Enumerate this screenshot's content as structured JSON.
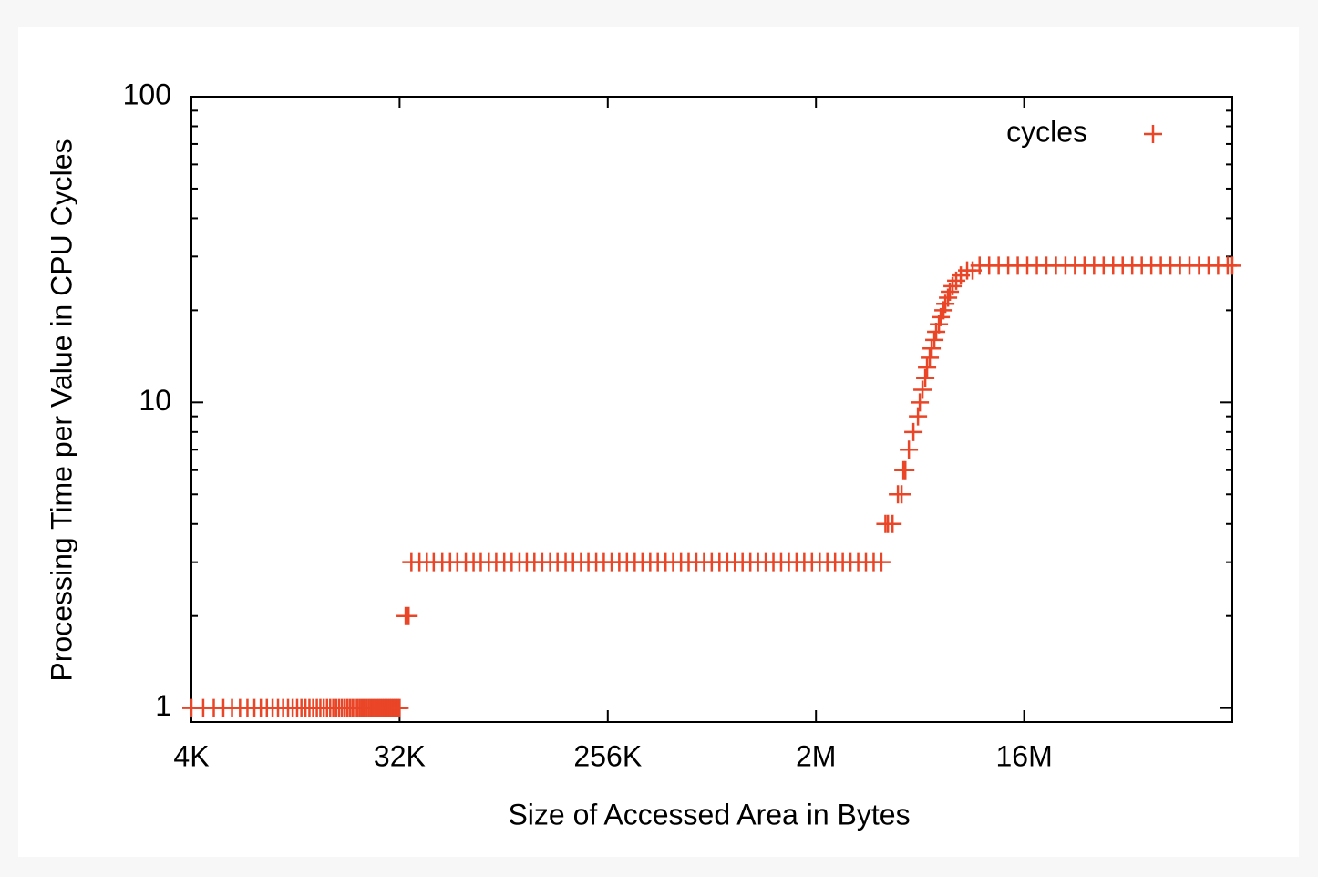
{
  "chart_data": {
    "type": "scatter",
    "xlabel": "Size of Accessed Area in Bytes",
    "ylabel": "Processing Time per Value in CPU Cycles",
    "xscale": "log",
    "yscale": "log",
    "xlim": [
      4,
      131072
    ],
    "ylim": [
      0.9,
      100
    ],
    "xticks": [
      {
        "value": 4,
        "label": "4K"
      },
      {
        "value": 32,
        "label": "32K"
      },
      {
        "value": 256,
        "label": "256K"
      },
      {
        "value": 2048,
        "label": "2M"
      },
      {
        "value": 16384,
        "label": "16M"
      }
    ],
    "yticks": [
      1,
      10,
      100
    ],
    "yminorticks": [
      2,
      3,
      4,
      5,
      6,
      7,
      8,
      9,
      20,
      30,
      40,
      50,
      60,
      70,
      80,
      90
    ],
    "legend": "upper right",
    "x": [
      4,
      4.5,
      5,
      5.5,
      6,
      6.5,
      7,
      7.5,
      8,
      8.5,
      9,
      9.5,
      10,
      10.5,
      11,
      11.5,
      12,
      12.5,
      13,
      13.5,
      14,
      14.5,
      15,
      15.5,
      16,
      16.5,
      17,
      17.5,
      18,
      18.5,
      19,
      19.5,
      20,
      20.5,
      21,
      21.5,
      22,
      22.5,
      23,
      23.5,
      24,
      24.5,
      25,
      25.5,
      26,
      26.5,
      27,
      27.5,
      28,
      28.5,
      29,
      29.5,
      30,
      30.5,
      31,
      31.5,
      32,
      34,
      35,
      36,
      39,
      42,
      45,
      49,
      53,
      57,
      62,
      67,
      72,
      78,
      84,
      91,
      98,
      106,
      114,
      123,
      133,
      144,
      155,
      168,
      181,
      196,
      211,
      228,
      246,
      266,
      287,
      310,
      335,
      362,
      391,
      422,
      456,
      492,
      532,
      574,
      620,
      670,
      723,
      781,
      844,
      911,
      984,
      1063,
      1148,
      1240,
      1339,
      1446,
      1562,
      1687,
      1822,
      1968,
      2125,
      2295,
      2479,
      2677,
      2891,
      3123,
      3373,
      3643,
      3934,
      4100,
      4203,
      4400,
      4643,
      4815,
      4905,
      5000,
      5180,
      5420,
      5673,
      5777,
      5935,
      6101,
      6212,
      6383,
      6502,
      6681,
      6803,
      6994,
      7121,
      7318,
      7455,
      7660,
      7799,
      8016,
      8311,
      8700,
      9269,
      9789,
      10500,
      11550,
      12700,
      13970,
      15370,
      16900,
      18600,
      20460,
      22500,
      24750,
      27230,
      29950,
      32940,
      36240,
      39860,
      43850,
      48230,
      53060,
      58360,
      64200,
      70620,
      77680,
      85450,
      93990,
      103400,
      113700,
      125100,
      131072
    ],
    "series": [
      {
        "name": "cycles",
        "color": "#ea4526",
        "values": [
          1,
          1,
          1,
          1,
          1,
          1,
          1,
          1,
          1,
          1,
          1,
          1,
          1,
          1,
          1,
          1,
          1,
          1,
          1,
          1,
          1,
          1,
          1,
          1,
          1,
          1,
          1,
          1,
          1,
          1,
          1,
          1,
          1,
          1,
          1,
          1,
          1,
          1,
          1,
          1,
          1,
          1,
          1,
          1,
          1,
          1,
          1,
          1,
          1,
          1,
          1,
          1,
          1,
          1,
          1,
          1,
          1,
          2,
          2,
          3,
          3,
          3,
          3,
          3,
          3,
          3,
          3,
          3,
          3,
          3,
          3,
          3,
          3,
          3,
          3,
          3,
          3,
          3,
          3,
          3,
          3,
          3,
          3,
          3,
          3,
          3,
          3,
          3,
          3,
          3,
          3,
          3,
          3,
          3,
          3,
          3,
          3,
          3,
          3,
          3,
          3,
          3,
          3,
          3,
          3,
          3,
          3,
          3,
          3,
          3,
          3,
          3,
          3,
          3,
          3,
          3,
          3,
          3,
          3,
          3,
          3,
          4,
          4,
          4,
          5,
          5,
          6,
          6,
          7,
          8,
          9,
          10,
          11,
          12,
          13,
          14,
          15,
          16,
          17,
          18,
          19,
          20,
          21,
          22,
          23,
          24,
          25,
          26,
          27,
          27,
          28,
          28,
          28,
          28,
          28,
          28,
          28,
          28,
          28,
          28,
          28,
          28,
          28,
          28,
          28,
          28,
          28,
          28,
          28,
          28,
          28,
          28,
          28,
          28,
          28,
          28,
          28,
          28
        ]
      }
    ]
  }
}
